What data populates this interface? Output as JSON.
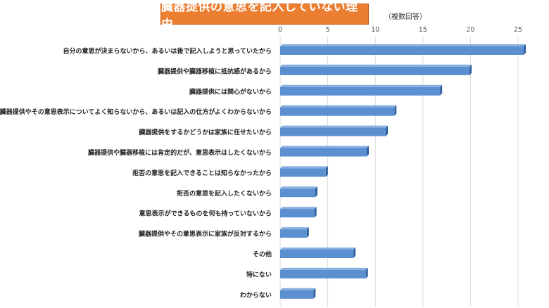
{
  "title": "臓器提供の意思を記入していない理由",
  "note": "（複数回答）",
  "colors": {
    "bar": "#5b8fd0",
    "bar_side": "#2f5f9c",
    "bar_top": "#86aee0",
    "title_bg": "#ec7e31"
  },
  "chart_data": {
    "type": "bar",
    "orientation": "horizontal",
    "categories": [
      "自分の意思が決まらないから、あるいは後で記入しようと思っていたから",
      "臓器提供や臓器移植に抵抗感があるから",
      "臓器提供には関心がないから",
      "臓器提供やその意思表示についてよく知らないから、あるいは記入の仕方がよくわからないから",
      "臓器提供をするかどうかは家族に任せたいから",
      "臓器提供や臓器移植には肯定的だが、意思表示はしたくないから",
      "拒否の意思を記入できることは知らなかったから",
      "拒否の意思を記入したくないから",
      "意思表示ができるものを何も持っていないから",
      "臓器提供やその意思表示に家族が反対するから",
      "その他",
      "特にない",
      "わからない"
    ],
    "values": [
      25.6,
      19.9,
      16.8,
      12.0,
      11.1,
      9.1,
      4.8,
      3.7,
      3.6,
      2.8,
      7.7,
      9.0,
      3.5
    ],
    "xlim": [
      0,
      25
    ],
    "xticks": [
      "0",
      "5",
      "10",
      "15",
      "20",
      "25"
    ],
    "grid": true,
    "legend": "none"
  }
}
